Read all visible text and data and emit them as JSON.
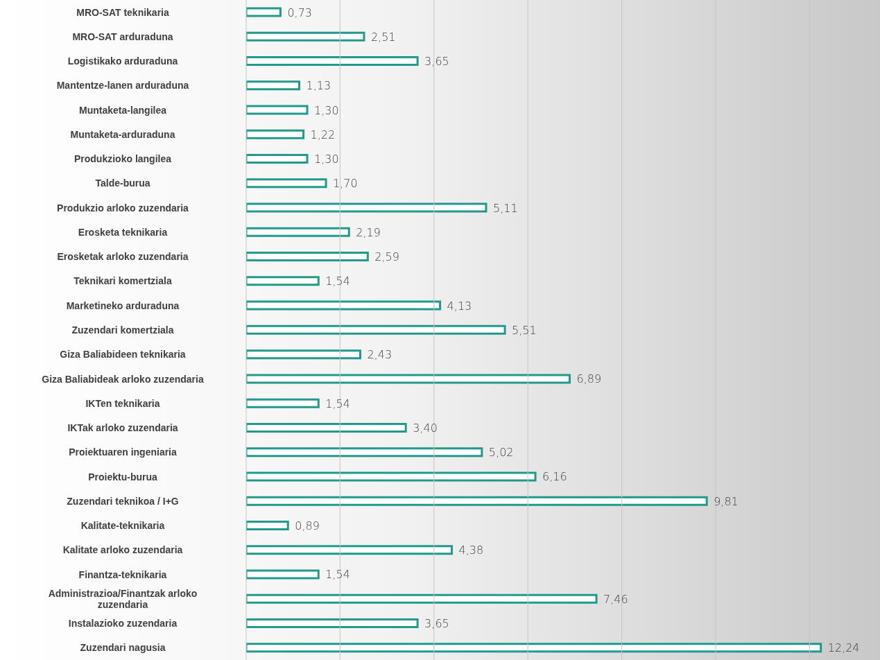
{
  "chart_data": {
    "type": "bar",
    "orientation": "horizontal",
    "categories": [
      "MRO-SAT teknikaria",
      "MRO-SAT arduraduna",
      "Logistikako arduraduna",
      "Mantentze-lanen arduraduna",
      "Muntaketa-langilea",
      "Muntaketa-arduraduna",
      "Produkzioko langilea",
      "Talde-burua",
      "Produkzio arloko zuzendaria",
      "Erosketa teknikaria",
      "Erosketak arloko zuzendaria",
      "Teknikari komertziala",
      "Marketineko arduraduna",
      "Zuzendari komertziala",
      "Giza Baliabideen teknikaria",
      "Giza Baliabideak arloko zuzendaria",
      "IKTen teknikaria",
      "IKTak arloko zuzendaria",
      "Proiektuaren ingeniaria",
      "Proiektu-burua",
      "Zuzendari teknikoa / I+G",
      "Kalitate-teknikaria",
      "Kalitate arloko zuzendaria",
      "Finantza-teknikaria",
      "Administrazioa/Finantzak arloko zuzendaria",
      "Instalazioko zuzendaria",
      "Zuzendari nagusia"
    ],
    "values": [
      0.73,
      2.51,
      3.65,
      1.13,
      1.3,
      1.22,
      1.3,
      1.7,
      5.11,
      2.19,
      2.59,
      1.54,
      4.13,
      5.51,
      2.43,
      6.89,
      1.54,
      3.4,
      5.02,
      6.16,
      9.81,
      0.89,
      4.38,
      1.54,
      7.46,
      3.65,
      12.24
    ],
    "value_labels": [
      "0,73",
      "2,51",
      "3,65",
      "1,13",
      "1,30",
      "1,22",
      "1,30",
      "1,70",
      "5,11",
      "2,19",
      "2,59",
      "1,54",
      "4,13",
      "5,51",
      "2,43",
      "6,89",
      "1,54",
      "3,40",
      "5,02",
      "6,16",
      "9,81",
      "0,89",
      "4,38",
      "1,54",
      "7,46",
      "3,65",
      "12,24"
    ],
    "color": "#1f9a8c",
    "xlim": [
      0,
      13.5
    ],
    "xticks": [
      {
        "value": 0,
        "label": null
      },
      {
        "value": 2,
        "label": null
      },
      {
        "value": 4,
        "label": null
      },
      {
        "value": 6,
        "label": null
      },
      {
        "value": 8,
        "label": null
      },
      {
        "value": 10,
        "label": null
      },
      {
        "value": 12,
        "label": null
      }
    ],
    "tick_labels": "y",
    "grid": "x"
  }
}
